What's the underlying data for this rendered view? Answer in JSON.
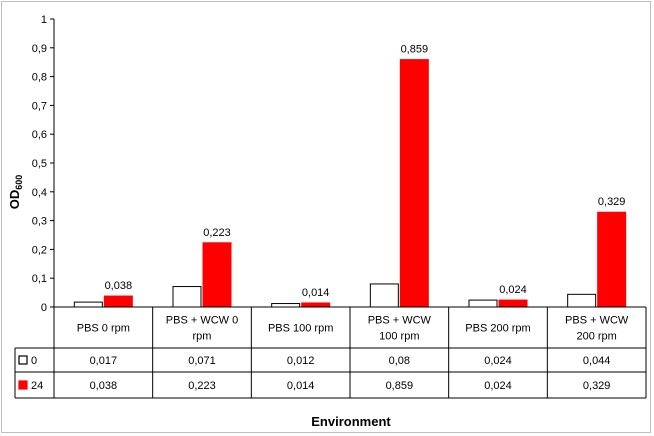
{
  "chart_data": {
    "type": "bar",
    "categories": [
      [
        "PBS 0 rpm"
      ],
      [
        "PBS + WCW 0",
        "rpm"
      ],
      [
        "PBS 100 rpm"
      ],
      [
        "PBS + WCW",
        "100 rpm"
      ],
      [
        "PBS 200 rpm"
      ],
      [
        "PBS + WCW",
        "200 rpm"
      ]
    ],
    "series": [
      {
        "name": "0",
        "color": "#ffffff",
        "values": [
          0.017,
          0.071,
          0.012,
          0.08,
          0.024,
          0.044
        ],
        "table_values": [
          "0,017",
          "0,071",
          "0,012",
          "0,08",
          "0,024",
          "0,044"
        ]
      },
      {
        "name": "24",
        "color": "#ff0000",
        "values": [
          0.038,
          0.223,
          0.014,
          0.859,
          0.024,
          0.329
        ],
        "table_values": [
          "0,038",
          "0,223",
          "0,014",
          "0,859",
          "0,024",
          "0,329"
        ],
        "data_labels": [
          "0,038",
          "0,223",
          "0,014",
          "0,859",
          "0,024",
          "0,329"
        ]
      }
    ],
    "ylim": [
      0,
      1
    ],
    "yticks": [
      "0",
      "0,1",
      "0,2",
      "0,3",
      "0,4",
      "0,5",
      "0,6",
      "0,7",
      "0,8",
      "0,9",
      "1"
    ],
    "ylabel": "OD600",
    "xlabel": "Environment",
    "grid": false,
    "legend": "data-table"
  }
}
